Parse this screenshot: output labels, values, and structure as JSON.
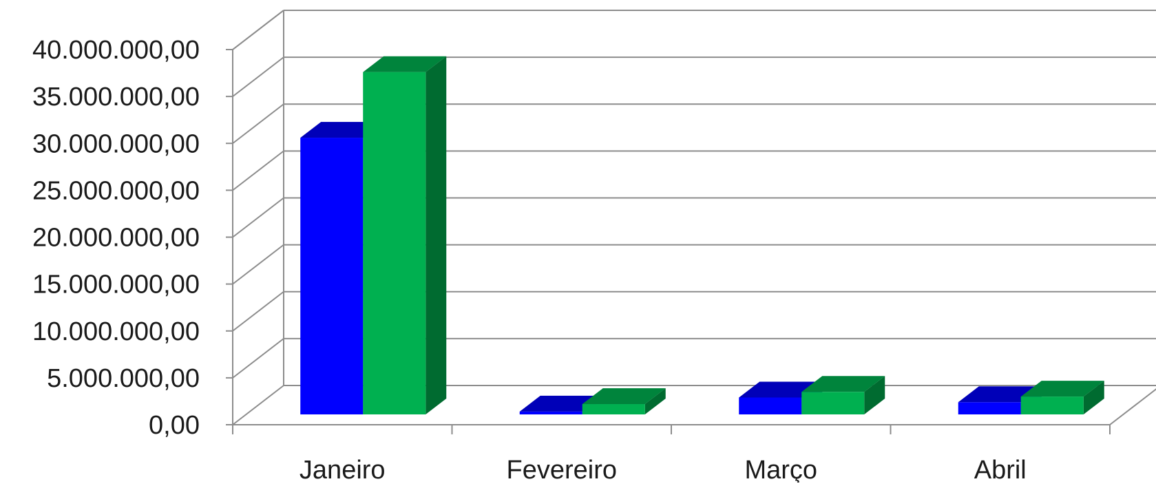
{
  "chart_data": {
    "type": "bar",
    "title": "",
    "xlabel": "",
    "ylabel": "",
    "categories": [
      "Janeiro",
      "Fevereiro",
      "Março",
      "Abril"
    ],
    "series": [
      {
        "values": [
          29500000,
          300000,
          1800000,
          1300000
        ]
      },
      {
        "values": [
          36500000,
          1100000,
          2400000,
          1900000
        ]
      }
    ],
    "ylim": [
      0,
      40000000
    ],
    "yticks": [
      0,
      5000000,
      10000000,
      15000000,
      20000000,
      25000000,
      30000000,
      35000000,
      40000000
    ],
    "ytick_labels": [
      "0,00",
      "5.000.000,00",
      "10.000.000,00",
      "15.000.000,00",
      "20.000.000,00",
      "25.000.000,00",
      "30.000.000,00",
      "35.000.000,00",
      "40.000.000,00"
    ],
    "grid": true,
    "legend": "none",
    "style": "3d-clustered-column",
    "colors": {
      "series": [
        {
          "front": "#0000ff",
          "top": "#0000b8",
          "side": "#00008a"
        },
        {
          "front": "#00b050",
          "top": "#00843c",
          "side": "#006b30"
        }
      ],
      "grid": "#8c8c8c",
      "axis": "#8c8c8c"
    }
  }
}
